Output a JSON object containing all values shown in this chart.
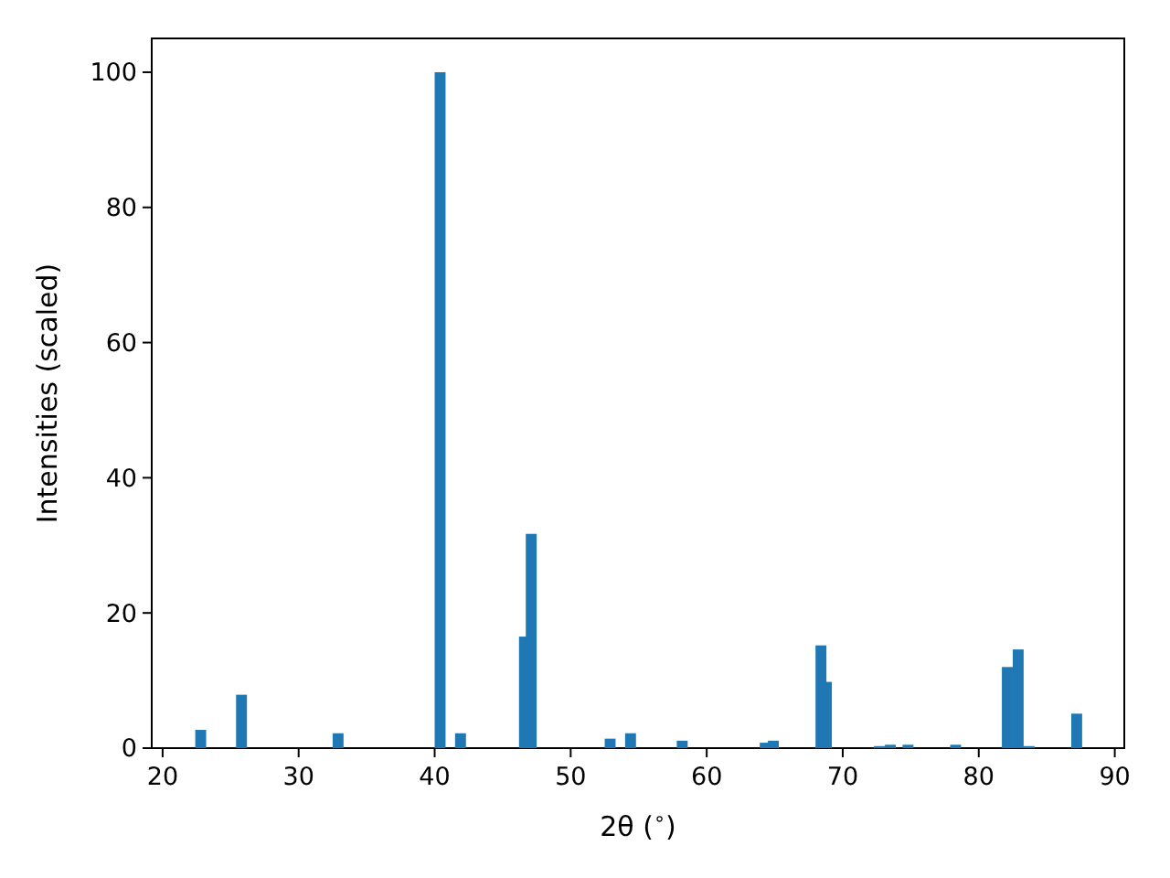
{
  "chart_data": {
    "type": "bar",
    "xlabel": "2θ ($^{∘}$)",
    "ylabel": "Intensities (scaled)",
    "x": [
      22.8,
      25.8,
      32.9,
      40.4,
      41.9,
      46.6,
      47.1,
      52.9,
      54.4,
      58.2,
      64.3,
      64.9,
      68.4,
      68.8,
      72.7,
      73.5,
      74.8,
      78.3,
      82.1,
      82.9,
      83.7,
      87.2
    ],
    "values": [
      2.7,
      7.9,
      2.2,
      100,
      2.2,
      16.5,
      31.7,
      1.4,
      2.2,
      1.1,
      0.8,
      1.1,
      15.2,
      9.8,
      0.3,
      0.5,
      0.5,
      0.5,
      12,
      14.6,
      0.3,
      5.1
    ],
    "color": "#1f77b4",
    "xlim": [
      19.2,
      90.7
    ],
    "ylim": [
      0,
      105
    ],
    "xticks": [
      20,
      30,
      40,
      50,
      60,
      70,
      80,
      90
    ],
    "yticks": [
      0,
      20,
      40,
      60,
      80,
      100
    ]
  }
}
